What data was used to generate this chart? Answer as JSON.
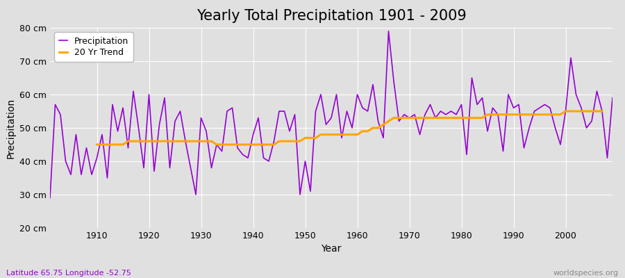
{
  "title": "Yearly Total Precipitation 1901 - 2009",
  "xlabel": "Year",
  "ylabel": "Precipitation",
  "subtitle": "Latitude 65.75 Longitude -52.75",
  "watermark": "worldspecies.org",
  "ylim": [
    20,
    80
  ],
  "yticks": [
    20,
    30,
    40,
    50,
    60,
    70,
    80
  ],
  "ytick_labels": [
    "20 cm",
    "30 cm",
    "40 cm",
    "50 cm",
    "60 cm",
    "70 cm",
    "80 cm"
  ],
  "years": [
    1901,
    1902,
    1903,
    1904,
    1905,
    1906,
    1907,
    1908,
    1909,
    1910,
    1911,
    1912,
    1913,
    1914,
    1915,
    1916,
    1917,
    1918,
    1919,
    1920,
    1921,
    1922,
    1923,
    1924,
    1925,
    1926,
    1927,
    1928,
    1929,
    1930,
    1931,
    1932,
    1933,
    1934,
    1935,
    1936,
    1937,
    1938,
    1939,
    1940,
    1941,
    1942,
    1943,
    1944,
    1945,
    1946,
    1947,
    1948,
    1949,
    1950,
    1951,
    1952,
    1953,
    1954,
    1955,
    1956,
    1957,
    1958,
    1959,
    1960,
    1961,
    1962,
    1963,
    1964,
    1965,
    1966,
    1967,
    1968,
    1969,
    1970,
    1971,
    1972,
    1973,
    1974,
    1975,
    1976,
    1977,
    1978,
    1979,
    1980,
    1981,
    1982,
    1983,
    1984,
    1985,
    1986,
    1987,
    1988,
    1989,
    1990,
    1991,
    1992,
    1993,
    1994,
    1995,
    1996,
    1997,
    1998,
    1999,
    2000,
    2001,
    2002,
    2003,
    2004,
    2005,
    2006,
    2007,
    2008,
    2009
  ],
  "precipitation": [
    29,
    57,
    54,
    40,
    36,
    48,
    36,
    44,
    36,
    41,
    48,
    35,
    57,
    49,
    56,
    44,
    61,
    50,
    38,
    60,
    37,
    51,
    59,
    38,
    52,
    55,
    46,
    38,
    30,
    53,
    49,
    38,
    45,
    43,
    55,
    56,
    44,
    42,
    41,
    48,
    53,
    41,
    40,
    46,
    55,
    55,
    49,
    54,
    30,
    40,
    31,
    55,
    60,
    51,
    53,
    60,
    47,
    55,
    50,
    60,
    56,
    55,
    63,
    52,
    47,
    79,
    64,
    52,
    54,
    53,
    54,
    48,
    54,
    57,
    53,
    55,
    54,
    55,
    54,
    57,
    42,
    65,
    57,
    59,
    49,
    56,
    54,
    43,
    60,
    56,
    57,
    44,
    50,
    55,
    56,
    57,
    56,
    50,
    45,
    55,
    71,
    60,
    56,
    50,
    52,
    61,
    55,
    41,
    59
  ],
  "trend": [
    null,
    null,
    null,
    null,
    null,
    null,
    null,
    null,
    null,
    45,
    45,
    45,
    45,
    45,
    45,
    46,
    46,
    46,
    46,
    46,
    46,
    46,
    46,
    46,
    46,
    46,
    46,
    46,
    46,
    46,
    46,
    46,
    45,
    45,
    45,
    45,
    45,
    45,
    45,
    45,
    45,
    45,
    45,
    45,
    46,
    46,
    46,
    46,
    46,
    47,
    47,
    47,
    48,
    48,
    48,
    48,
    48,
    48,
    48,
    48,
    49,
    49,
    50,
    50,
    51,
    52,
    53,
    53,
    53,
    53,
    53,
    53,
    53,
    53,
    53,
    53,
    53,
    53,
    53,
    53,
    53,
    53,
    53,
    53,
    54,
    54,
    54,
    54,
    54,
    54,
    54,
    54,
    54,
    54,
    54,
    54,
    54,
    54,
    54,
    55,
    55,
    55,
    55,
    55,
    55,
    55,
    55,
    null,
    null
  ],
  "precip_color": "#9400D3",
  "trend_color": "#FFA500",
  "bg_color": "#E0E0E0",
  "grid_color": "#FFFFFF",
  "title_fontsize": 15,
  "label_fontsize": 10,
  "tick_fontsize": 9,
  "subtitle_color": "#9400D3",
  "watermark_color": "#888888"
}
